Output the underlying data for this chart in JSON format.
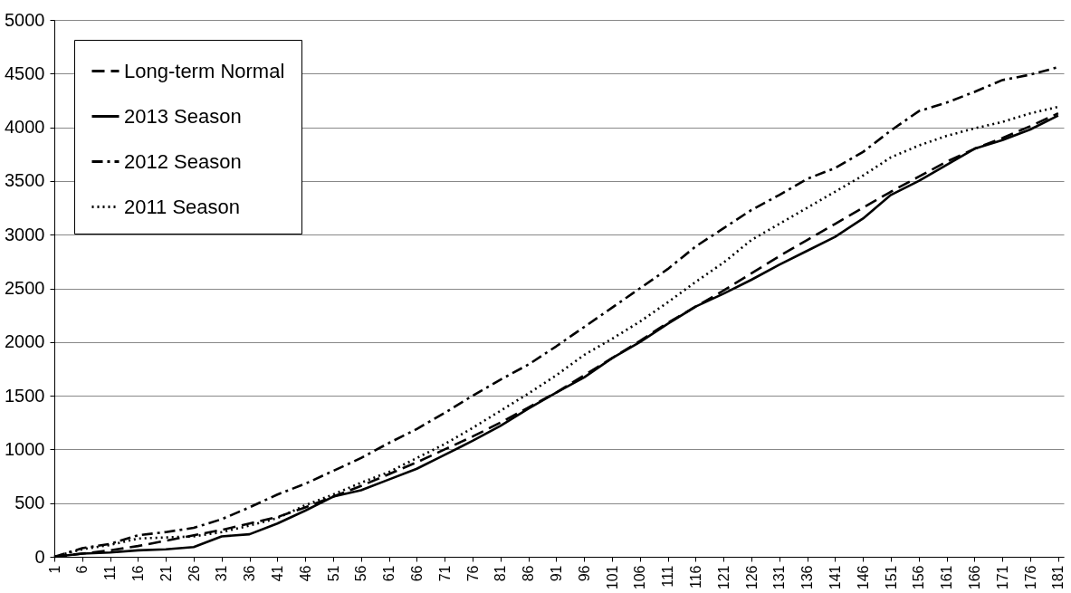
{
  "chart_data": {
    "type": "line",
    "x": [
      1,
      6,
      11,
      16,
      21,
      26,
      31,
      36,
      41,
      46,
      51,
      56,
      61,
      66,
      71,
      76,
      81,
      86,
      91,
      96,
      101,
      106,
      111,
      116,
      121,
      126,
      131,
      136,
      141,
      146,
      151,
      156,
      161,
      166,
      171,
      176,
      181
    ],
    "xlim": [
      1,
      182
    ],
    "xticks": [
      1,
      6,
      11,
      16,
      21,
      26,
      31,
      36,
      41,
      46,
      51,
      56,
      61,
      66,
      71,
      76,
      81,
      86,
      91,
      96,
      101,
      106,
      111,
      116,
      121,
      126,
      131,
      136,
      141,
      146,
      151,
      156,
      161,
      166,
      171,
      176,
      181
    ],
    "ylim": [
      0,
      5000
    ],
    "yticks": [
      0,
      500,
      1000,
      1500,
      2000,
      2500,
      3000,
      3500,
      4000,
      4500,
      5000
    ],
    "grid": "y",
    "legend": "top left",
    "marker": "none",
    "series": [
      {
        "name": "Long-term Normal",
        "color": "#000000",
        "line_style": "dashed",
        "values": [
          0,
          30,
          60,
          100,
          150,
          200,
          250,
          310,
          370,
          460,
          560,
          660,
          770,
          880,
          1000,
          1120,
          1250,
          1390,
          1530,
          1690,
          1850,
          2010,
          2180,
          2330,
          2480,
          2640,
          2800,
          2950,
          3100,
          3250,
          3400,
          3540,
          3680,
          3800,
          3900,
          4010,
          4130
        ]
      },
      {
        "name": "2013 Season",
        "color": "#000000",
        "line_style": "solid",
        "values": [
          0,
          30,
          40,
          60,
          70,
          90,
          190,
          210,
          310,
          430,
          560,
          620,
          720,
          820,
          950,
          1080,
          1220,
          1380,
          1530,
          1670,
          1850,
          2000,
          2170,
          2330,
          2450,
          2580,
          2720,
          2850,
          2980,
          3150,
          3370,
          3500,
          3650,
          3800,
          3880,
          3980,
          4110
        ]
      },
      {
        "name": "2012 Season",
        "color": "#000000",
        "line_style": "dashdot",
        "values": [
          0,
          80,
          120,
          200,
          230,
          270,
          350,
          460,
          580,
          680,
          800,
          920,
          1060,
          1190,
          1340,
          1500,
          1650,
          1790,
          1960,
          2140,
          2320,
          2500,
          2680,
          2890,
          3060,
          3230,
          3370,
          3520,
          3620,
          3770,
          3970,
          4150,
          4230,
          4330,
          4440,
          4490,
          4560
        ]
      },
      {
        "name": "2011 Season",
        "color": "#000000",
        "line_style": "dotted",
        "values": [
          0,
          70,
          110,
          170,
          180,
          190,
          230,
          290,
          360,
          480,
          580,
          690,
          790,
          920,
          1050,
          1200,
          1360,
          1520,
          1690,
          1880,
          2030,
          2190,
          2370,
          2560,
          2740,
          2950,
          3100,
          3250,
          3400,
          3550,
          3720,
          3830,
          3920,
          3990,
          4050,
          4130,
          4190
        ]
      }
    ]
  }
}
